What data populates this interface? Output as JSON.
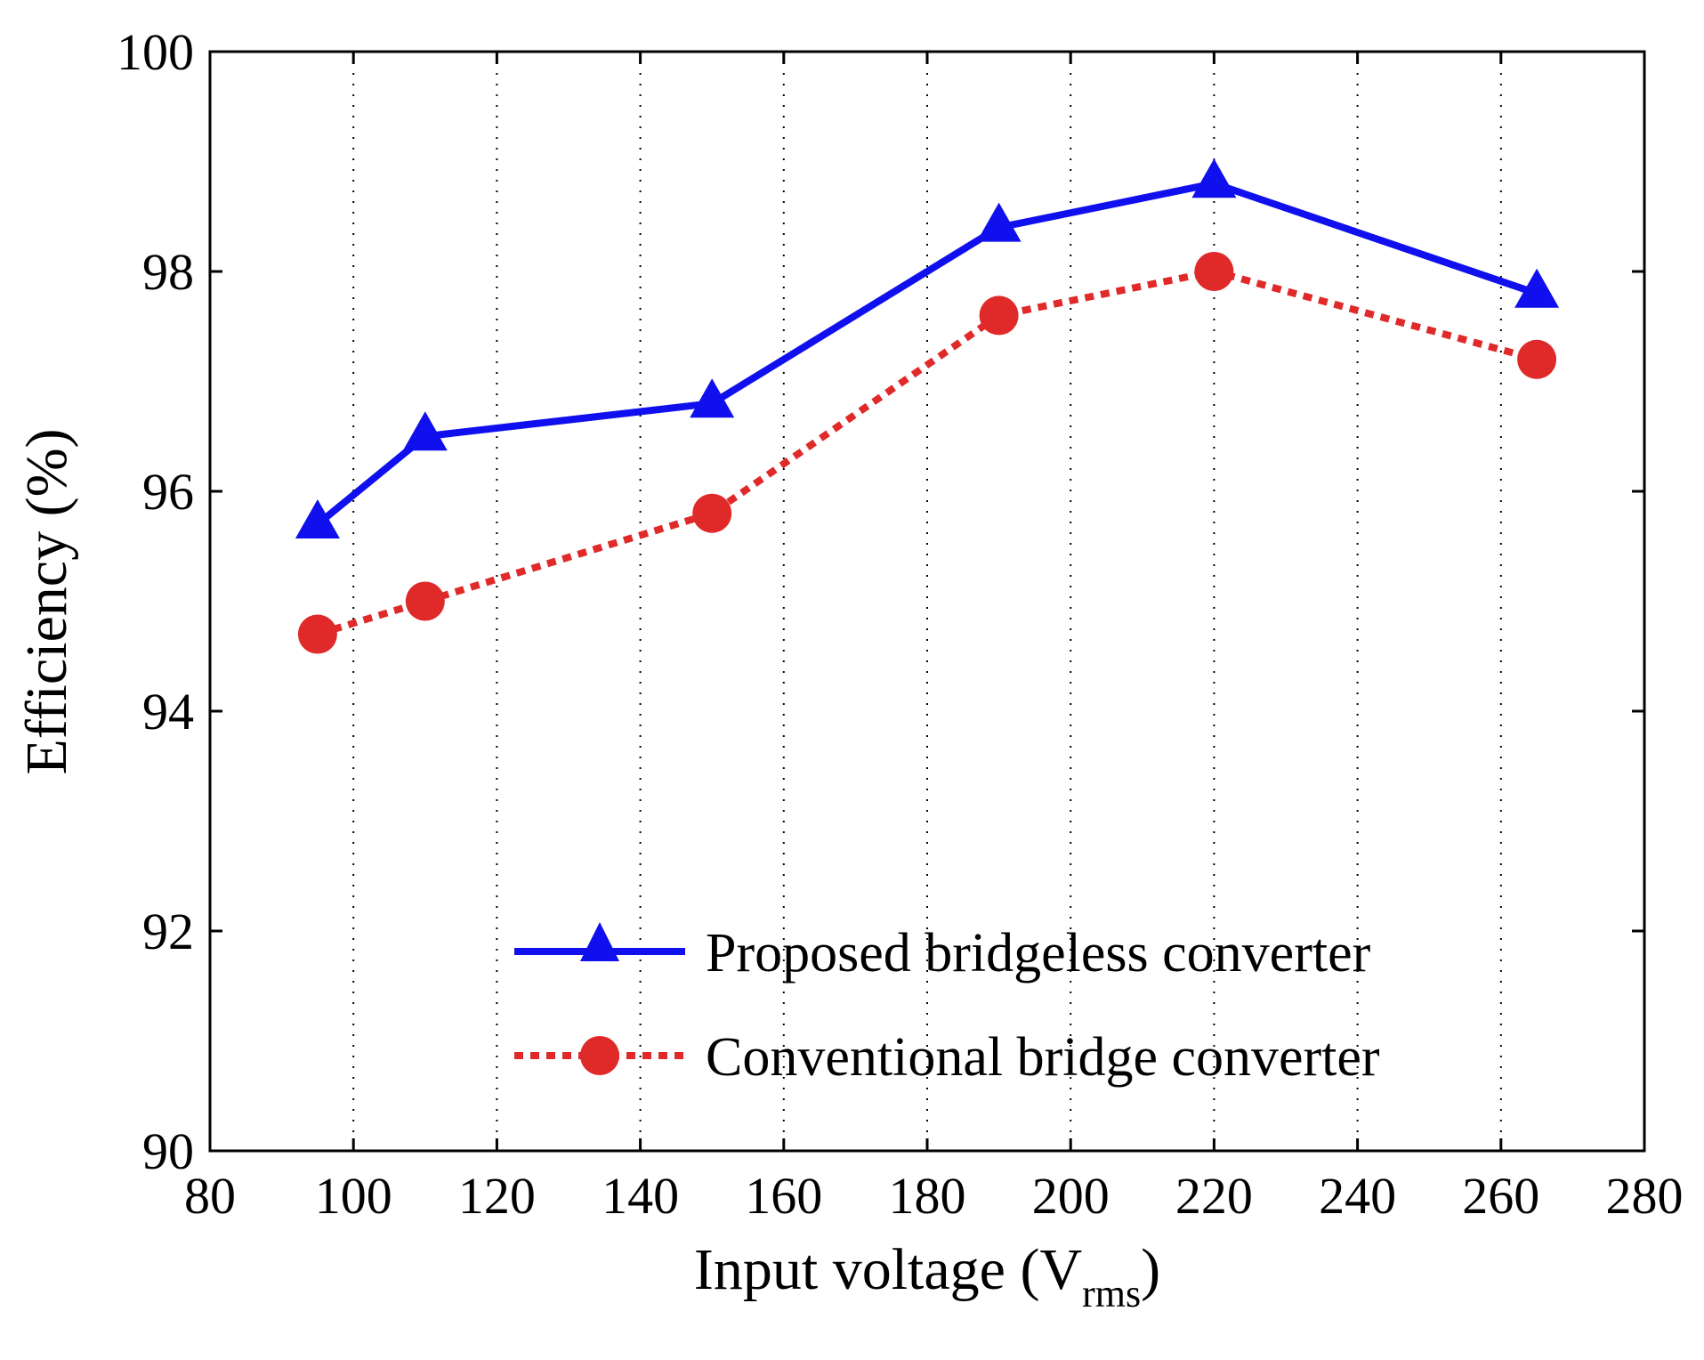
{
  "chart_data": {
    "type": "line",
    "title": "",
    "xlabel": "Input voltage (V",
    "xlabel_subscript": "rms",
    "xlabel_close": ")",
    "ylabel": "Efficiency (%)",
    "xlim": [
      80,
      280
    ],
    "ylim": [
      90,
      100
    ],
    "xticks": [
      80,
      100,
      120,
      140,
      160,
      180,
      200,
      220,
      240,
      260,
      280
    ],
    "yticks": [
      90,
      92,
      94,
      96,
      98,
      100
    ],
    "grid": "x-dotted",
    "legend_position": "bottom-right",
    "series": [
      {
        "name": "Proposed bridgeless converter",
        "color": "#1010ee",
        "line_style": "solid",
        "marker": "triangle",
        "x": [
          95,
          110,
          150,
          190,
          220,
          265
        ],
        "y": [
          95.7,
          96.5,
          96.8,
          98.4,
          98.8,
          97.8
        ]
      },
      {
        "name": "Conventional bridge converter",
        "color": "#e02a2a",
        "line_style": "dotted",
        "marker": "circle",
        "x": [
          95,
          110,
          150,
          190,
          220,
          265
        ],
        "y": [
          94.7,
          95.0,
          95.8,
          97.6,
          98.0,
          97.2
        ]
      }
    ]
  }
}
